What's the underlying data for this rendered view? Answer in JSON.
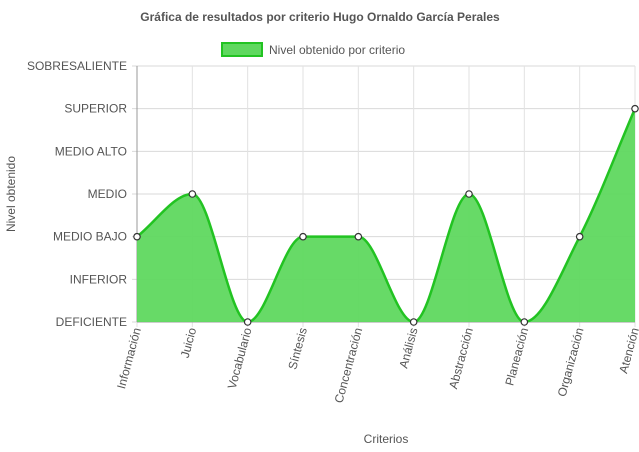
{
  "chart_data": {
    "type": "area",
    "title": "Gráfica de resultados por criterio Hugo Ornaldo García Perales",
    "xlabel": "Criterios",
    "ylabel": "Nivel obtenido",
    "y_levels": [
      "DEFICIENTE",
      "INFERIOR",
      "MEDIO BAJO",
      "MEDIO",
      "MEDIO ALTO",
      "SUPERIOR",
      "SOBRESALIENTE"
    ],
    "categories": [
      "Información",
      "Juicio",
      "Vocabulario",
      "Síntesis",
      "Concentración",
      "Análisis",
      "Abstracción",
      "Planeación",
      "Organización",
      "Atención"
    ],
    "series": [
      {
        "name": "Nivel obtenido por criterio",
        "values": [
          "MEDIO BAJO",
          "MEDIO",
          "DEFICIENTE",
          "MEDIO BAJO",
          "MEDIO BAJO",
          "DEFICIENTE",
          "MEDIO",
          "DEFICIENTE",
          "MEDIO BAJO",
          "SUPERIOR"
        ],
        "fill_color": "#5fd85f",
        "line_color": "#22c322"
      }
    ],
    "legend_position": "top",
    "grid": true
  }
}
